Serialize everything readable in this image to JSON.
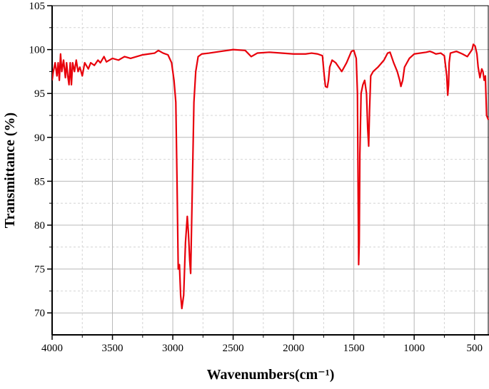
{
  "chart_data": {
    "type": "line",
    "xlabel": "Wavenumbers(cm⁻¹)",
    "ylabel": "Transmittance (%)",
    "x": [
      4000,
      3990,
      3975,
      3960,
      3950,
      3940,
      3930,
      3920,
      3905,
      3890,
      3880,
      3870,
      3860,
      3850,
      3840,
      3830,
      3815,
      3800,
      3785,
      3770,
      3750,
      3730,
      3700,
      3680,
      3650,
      3620,
      3600,
      3570,
      3550,
      3500,
      3450,
      3400,
      3350,
      3300,
      3250,
      3200,
      3150,
      3120,
      3080,
      3040,
      3010,
      2990,
      2975,
      2965,
      2955,
      2945,
      2935,
      2925,
      2910,
      2895,
      2880,
      2870,
      2860,
      2852,
      2840,
      2825,
      2810,
      2790,
      2760,
      2700,
      2600,
      2500,
      2400,
      2350,
      2300,
      2200,
      2100,
      2000,
      1900,
      1850,
      1800,
      1760,
      1745,
      1735,
      1720,
      1710,
      1700,
      1680,
      1650,
      1600,
      1560,
      1520,
      1500,
      1480,
      1470,
      1465,
      1460,
      1455,
      1450,
      1440,
      1425,
      1410,
      1395,
      1385,
      1377,
      1370,
      1360,
      1340,
      1300,
      1250,
      1220,
      1200,
      1170,
      1140,
      1120,
      1110,
      1095,
      1080,
      1040,
      1000,
      900,
      870,
      850,
      820,
      780,
      750,
      730,
      722,
      715,
      710,
      700,
      650,
      600,
      560,
      520,
      510,
      495,
      480,
      470,
      455,
      440,
      430,
      420,
      410,
      400,
      385
    ],
    "series": [
      {
        "color": "#e8000b",
        "values": [
          96.5,
          97.5,
          98.5,
          97,
          98.5,
          96.5,
          99.5,
          97.5,
          98.8,
          96.8,
          98.5,
          97,
          96,
          98.5,
          96,
          98.5,
          97.5,
          98.8,
          97.5,
          98,
          97,
          98.5,
          97.8,
          98.5,
          98.2,
          98.8,
          98.5,
          99.2,
          98.6,
          99,
          98.8,
          99.2,
          99,
          99.2,
          99.4,
          99.5,
          99.6,
          99.9,
          99.6,
          99.4,
          98.5,
          96.5,
          94,
          85,
          75,
          75.5,
          72,
          70.5,
          72,
          78,
          81,
          79,
          76,
          74.5,
          83,
          94,
          97.5,
          99.2,
          99.5,
          99.6,
          99.8,
          100,
          99.9,
          99.2,
          99.6,
          99.7,
          99.6,
          99.5,
          99.5,
          99.6,
          99.5,
          99.3,
          97,
          95.8,
          95.7,
          96.5,
          98,
          98.8,
          98.5,
          97.5,
          98.5,
          99.8,
          99.9,
          99,
          95,
          85,
          75.5,
          78,
          88,
          95,
          96,
          96.5,
          95,
          91,
          89,
          93,
          97,
          97.5,
          98,
          98.8,
          99.6,
          99.7,
          98.5,
          97.5,
          96.5,
          95.8,
          96.5,
          98,
          99,
          99.5,
          99.7,
          99.8,
          99.7,
          99.5,
          99.6,
          99.3,
          97,
          94.8,
          96,
          98.5,
          99.6,
          99.8,
          99.5,
          99.2,
          100,
          100.6,
          100.4,
          99.5,
          98,
          96.8,
          97.8,
          97.5,
          96.5,
          97,
          92.5,
          92
        ]
      }
    ],
    "xlim": [
      4000,
      380
    ],
    "xticks": [
      4000,
      3500,
      3000,
      2500,
      2000,
      1500,
      1000,
      500
    ],
    "ylim": [
      67.5,
      105
    ],
    "yticks": [
      70,
      75,
      80,
      85,
      90,
      95,
      100,
      105
    ],
    "grid": true
  }
}
